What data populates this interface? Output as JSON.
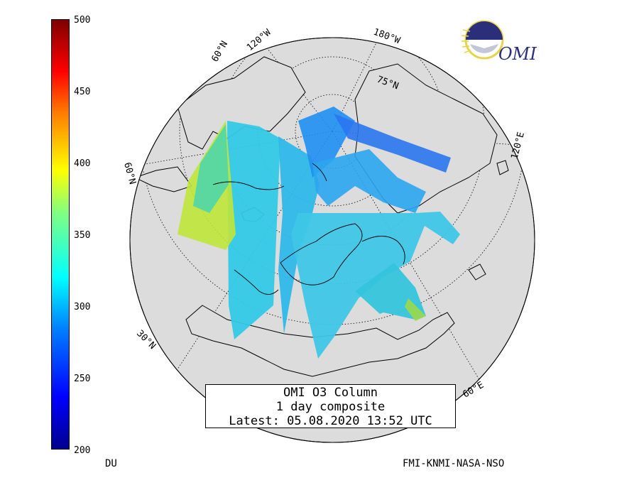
{
  "title_box": {
    "line1": "OMI O3 Column",
    "line2": "1 day composite",
    "line3": "Latest: 05.08.2020 13:52 UTC"
  },
  "colorbar": {
    "min": 200,
    "max": 500,
    "ticks": [
      "500",
      "450",
      "400",
      "350",
      "300",
      "250",
      "200"
    ],
    "unit": "DU"
  },
  "credit": "FMI-KNMI-NASA-NSO",
  "logo": {
    "text": "OMI"
  },
  "graticule_labels": {
    "lat_60_top": "60°N",
    "lon_120w": "120°W",
    "lon_180w": "180°W",
    "lat_75": "75°N",
    "lon_120e": "120°E",
    "lat_60_left": "60°N",
    "lat_30": "30°N",
    "lon_60e": "60°E"
  },
  "colors": {
    "ocean": "#dcdcdc",
    "low": "#00008f",
    "high": "#7f0000"
  }
}
